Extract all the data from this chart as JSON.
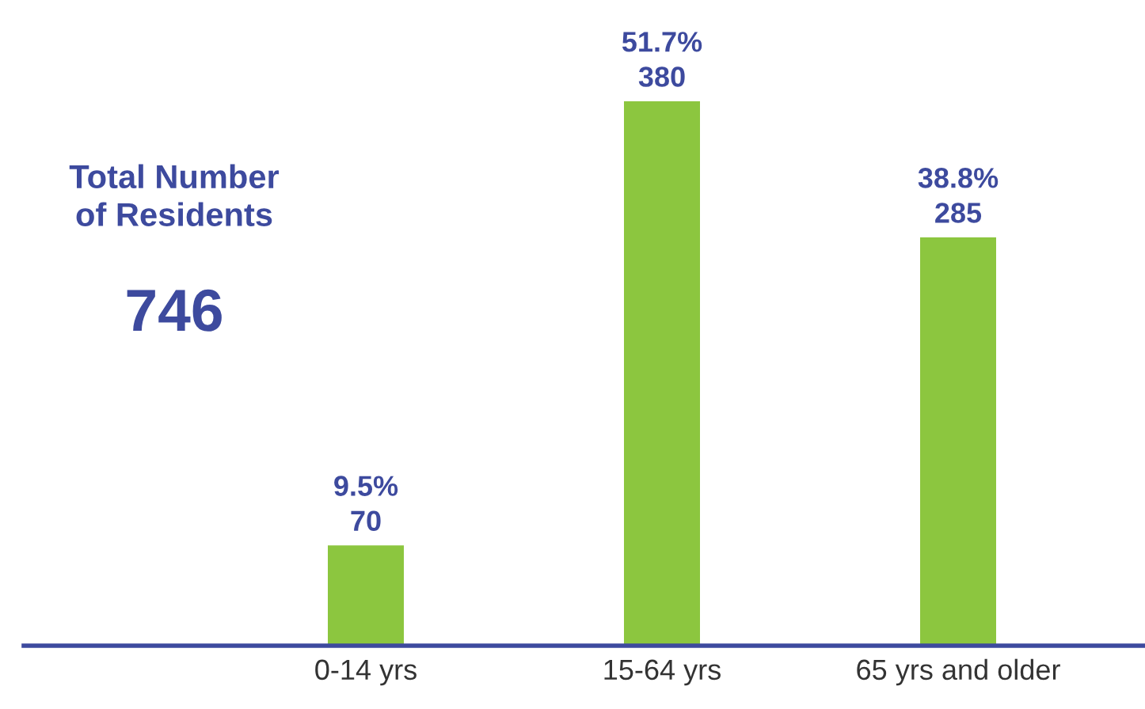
{
  "chart_data": {
    "type": "bar",
    "categories": [
      "0-14 yrs",
      "15-64 yrs",
      "65 yrs and older"
    ],
    "values": [
      70,
      380,
      285
    ],
    "color": "#8cc63f",
    "value_labels": [
      "9.5%\n70",
      "51.7%\n380",
      "38.8%\n285"
    ],
    "annotations": [
      "Total Number\nof Residents",
      "746"
    ]
  }
}
